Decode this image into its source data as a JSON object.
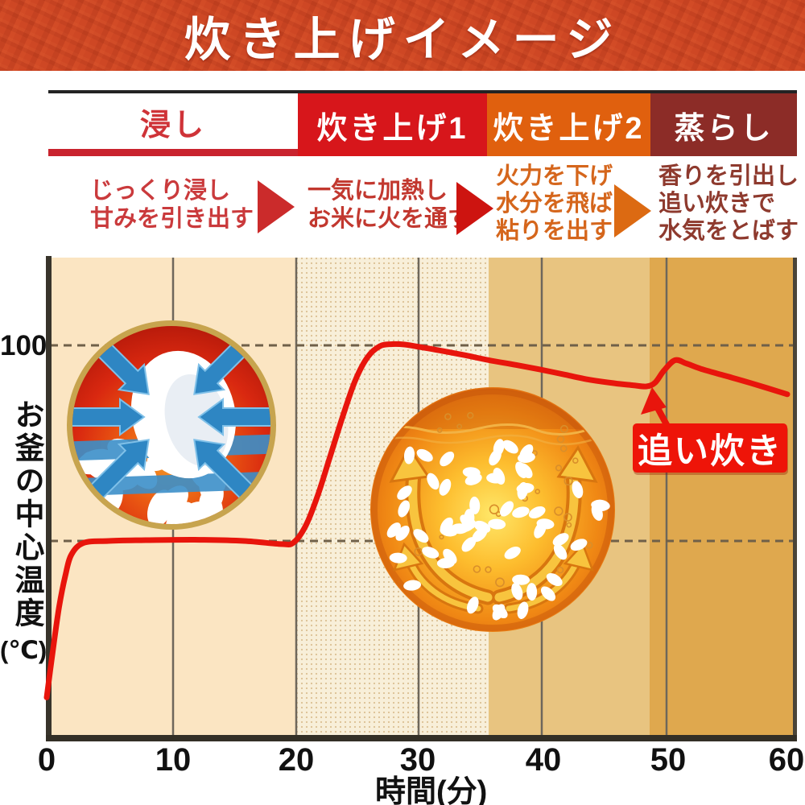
{
  "title": "炊き上げイメージ",
  "phases": [
    {
      "label": "浸し",
      "bg": "#ffffff",
      "text_color": "#cf3338",
      "desc_color": "#ca3a3c",
      "desc_lines": [
        "じっくり浸し",
        "甘みを引き出す"
      ]
    },
    {
      "label": "炊き上げ1",
      "bg": "#d7161b",
      "text_color": "#ffffff",
      "desc_color": "#c2382f",
      "desc_lines": [
        "一気に加熱し",
        "お米に火を通す"
      ]
    },
    {
      "label": "炊き上げ2",
      "bg": "#e0600e",
      "text_color": "#ffffff",
      "desc_color": "#d5661c",
      "desc_lines": [
        "火力を下げ",
        "水分を飛ばし",
        "粘りを出す"
      ]
    },
    {
      "label": "蒸らし",
      "bg": "#8c2c27",
      "text_color": "#ffffff",
      "desc_color": "#8e3a2e",
      "desc_lines": [
        "香りを引出し",
        "追い炊きで",
        "水気をとばす"
      ]
    }
  ],
  "y_axis": {
    "tick_100": "100",
    "title_vertical": "お釜の中心温度",
    "unit": "(℃)"
  },
  "x_axis": {
    "ticks": [
      "0",
      "10",
      "20",
      "30",
      "40",
      "50",
      "60"
    ],
    "title": "時間(分)"
  },
  "annotation": {
    "label": "追い炊き",
    "bg": "#ee1408"
  },
  "colors": {
    "title_band_bg": "#ce4724",
    "underline_red": "#c9232e",
    "band_soak": "#fbe5c2",
    "band_cook1_dotted": "#f8efd9",
    "band_cook2": "#e8c480",
    "band_steam": "#dfa84e",
    "gridline": "#6e675b",
    "dashed_line": "#6f6049",
    "axis": "#38342b",
    "curve": "#e8150c"
  },
  "chart_data": {
    "type": "line",
    "title": "炊き上げイメージ",
    "xlabel": "時間(分)",
    "ylabel": "お釜の中心温度(℃)",
    "x_ticks": [
      0,
      10,
      20,
      30,
      40,
      50,
      60
    ],
    "xlim": [
      0,
      60
    ],
    "ylim": [
      0,
      115
    ],
    "y_ref_lines_dashed": [
      100,
      50
    ],
    "y_labeled_tick": 100,
    "legend": "none",
    "grid": "vertical-only",
    "phases": [
      {
        "label": "浸し",
        "x_range": [
          0,
          20
        ],
        "note": "じっくり浸し甘みを引き出す"
      },
      {
        "label": "炊き上げ1",
        "x_range": [
          20,
          35.5
        ],
        "note": "一気に加熱しお米に火を通す"
      },
      {
        "label": "炊き上げ2",
        "x_range": [
          35.5,
          48.5
        ],
        "note": "火力を下げ水分を飛ばし粘りを出す"
      },
      {
        "label": "蒸らし",
        "x_range": [
          48.5,
          60
        ],
        "note": "香りを引出し追い炊きで水気をとばす"
      }
    ],
    "annotations": [
      {
        "text": "追い炊き",
        "x": 50,
        "y": 90
      }
    ],
    "series": [
      {
        "name": "お釜の中心温度",
        "points": [
          [
            0,
            10
          ],
          [
            0.5,
            22
          ],
          [
            1,
            33
          ],
          [
            1.5,
            41
          ],
          [
            2,
            46.5
          ],
          [
            3,
            49.5
          ],
          [
            5,
            50
          ],
          [
            8,
            50.2
          ],
          [
            12,
            50.3
          ],
          [
            16,
            50
          ],
          [
            19,
            49.2
          ],
          [
            20,
            49.6
          ],
          [
            21,
            54
          ],
          [
            22,
            62
          ],
          [
            23,
            72
          ],
          [
            24,
            82
          ],
          [
            25,
            91
          ],
          [
            26,
            97
          ],
          [
            27,
            99.8
          ],
          [
            28,
            100.3
          ],
          [
            29,
            100.2
          ],
          [
            30,
            99.7
          ],
          [
            32,
            98.6
          ],
          [
            34,
            97.4
          ],
          [
            36,
            96.1
          ],
          [
            38,
            95
          ],
          [
            40,
            93.8
          ],
          [
            42,
            92.5
          ],
          [
            44,
            91.2
          ],
          [
            46,
            90.3
          ],
          [
            47.5,
            89.8
          ],
          [
            48.6,
            89.5
          ],
          [
            49.3,
            90.5
          ],
          [
            50,
            93.5
          ],
          [
            50.9,
            96.2
          ],
          [
            51.8,
            95.4
          ],
          [
            53,
            94
          ],
          [
            55,
            92.2
          ],
          [
            57,
            90.4
          ],
          [
            60,
            87.5
          ]
        ]
      }
    ]
  }
}
